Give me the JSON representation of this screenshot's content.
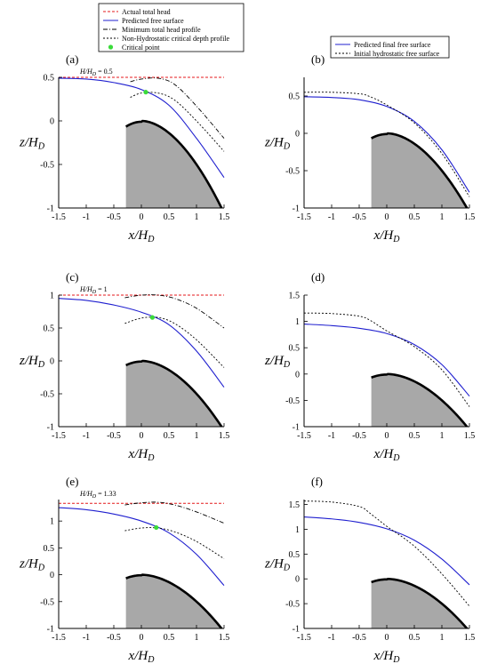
{
  "legend_left": {
    "items": [
      {
        "label": "Actual total head",
        "style": "red-dashed",
        "color": "#e41a1c"
      },
      {
        "label": "Predicted free surface",
        "style": "solid",
        "color": "#1f1fcf"
      },
      {
        "label": "Minimum total head profile",
        "style": "dash-dot",
        "color": "#000000"
      },
      {
        "label": "Non-Hydrostatic critical depth profile",
        "style": "dotted",
        "color": "#000000"
      },
      {
        "label": "Critical point",
        "style": "marker",
        "color": "#3adb3a"
      }
    ]
  },
  "legend_right": {
    "items": [
      {
        "label": "Predicted final free surface",
        "style": "solid",
        "color": "#1f1fcf"
      },
      {
        "label": "Initial hydrostatic free surface",
        "style": "dotted",
        "color": "#000000"
      }
    ]
  },
  "axis_labels": {
    "x_main": "x/H",
    "y_main": "z/H",
    "sub": "D"
  },
  "chart_data": [
    {
      "id": "a",
      "panel_label": "(a)",
      "type": "line",
      "head_label": "H/H",
      "head_sub": "D",
      "head_value": " = 0.5",
      "xlim": [
        -1.5,
        1.5
      ],
      "ylim": [
        -1,
        0.5
      ],
      "xticks": [
        -1.5,
        -1,
        -0.5,
        0,
        0.5,
        1,
        1.5
      ],
      "yticks": [
        -1,
        -0.5,
        0,
        0.5
      ],
      "total_head": 0.5,
      "series": [
        {
          "name": "Predicted free surface",
          "x": [
            -1.5,
            -1,
            -0.5,
            0,
            0.5,
            1,
            1.5
          ],
          "y": [
            0.49,
            0.48,
            0.44,
            0.36,
            0.18,
            -0.2,
            -0.65
          ]
        },
        {
          "name": "Minimum total head profile",
          "x": [
            -0.2,
            0,
            0.3,
            0.6,
            1,
            1.5
          ],
          "y": [
            0.45,
            0.48,
            0.49,
            0.42,
            0.17,
            -0.2
          ]
        },
        {
          "name": "Non-Hydrostatic critical depth profile",
          "x": [
            -0.2,
            0,
            0.3,
            0.6,
            1,
            1.5
          ],
          "y": [
            0.27,
            0.32,
            0.32,
            0.24,
            0,
            -0.35
          ]
        },
        {
          "name": "Critical point",
          "x": [
            0.08
          ],
          "y": [
            0.33
          ]
        }
      ]
    },
    {
      "id": "b",
      "panel_label": "(b)",
      "type": "line",
      "xlim": [
        -1.5,
        1.5
      ],
      "ylim": [
        -1,
        0.75
      ],
      "xticks": [
        -1.5,
        -1,
        -0.5,
        0,
        0.5,
        1,
        1.5
      ],
      "yticks": [
        -1,
        -0.5,
        0,
        0.5
      ],
      "series": [
        {
          "name": "Predicted final free surface",
          "x": [
            -1.5,
            -1,
            -0.5,
            0,
            0.5,
            1,
            1.5
          ],
          "y": [
            0.49,
            0.48,
            0.45,
            0.36,
            0.16,
            -0.22,
            -0.79
          ]
        },
        {
          "name": "Initial hydrostatic free surface",
          "x": [
            -1.5,
            -1,
            -0.5,
            -0.3,
            0,
            0.5,
            1,
            1.5
          ],
          "y": [
            0.55,
            0.55,
            0.53,
            0.49,
            0.38,
            0.14,
            -0.27,
            -0.85
          ]
        }
      ]
    },
    {
      "id": "c",
      "panel_label": "(c)",
      "type": "line",
      "head_label": "H/H",
      "head_sub": "D",
      "head_value": " = 1",
      "xlim": [
        -1.5,
        1.5
      ],
      "ylim": [
        -1,
        1
      ],
      "xticks": [
        -1.5,
        -1,
        -0.5,
        0,
        0.5,
        1,
        1.5
      ],
      "yticks": [
        -1,
        -0.5,
        0,
        0.5,
        1
      ],
      "total_head": 1,
      "series": [
        {
          "name": "Predicted free surface",
          "x": [
            -1.5,
            -1,
            -0.5,
            0,
            0.5,
            1,
            1.5
          ],
          "y": [
            0.95,
            0.92,
            0.85,
            0.74,
            0.55,
            0.15,
            -0.4
          ]
        },
        {
          "name": "Minimum total head profile",
          "x": [
            -0.3,
            0,
            0.3,
            0.6,
            1,
            1.5
          ],
          "y": [
            0.96,
            1,
            1,
            0.95,
            0.8,
            0.5
          ]
        },
        {
          "name": "Non-Hydrostatic critical depth profile",
          "x": [
            -0.3,
            0,
            0.3,
            0.6,
            1,
            1.5
          ],
          "y": [
            0.57,
            0.65,
            0.66,
            0.57,
            0.32,
            -0.1
          ]
        },
        {
          "name": "Critical point",
          "x": [
            0.2
          ],
          "y": [
            0.66
          ]
        }
      ]
    },
    {
      "id": "d",
      "panel_label": "(d)",
      "type": "line",
      "xlim": [
        -1.5,
        1.5
      ],
      "ylim": [
        -1,
        1.5
      ],
      "xticks": [
        -1.5,
        -1,
        -0.5,
        0,
        0.5,
        1,
        1.5
      ],
      "yticks": [
        -1,
        -0.5,
        0,
        0.5,
        1,
        1.5
      ],
      "series": [
        {
          "name": "Predicted final free surface",
          "x": [
            -1.5,
            -1,
            -0.5,
            0,
            0.5,
            1,
            1.5
          ],
          "y": [
            0.95,
            0.92,
            0.87,
            0.77,
            0.56,
            0.18,
            -0.42
          ]
        },
        {
          "name": "Initial hydrostatic free surface",
          "x": [
            -1.5,
            -1,
            -0.5,
            -0.3,
            0,
            0.5,
            1,
            1.5
          ],
          "y": [
            1.16,
            1.15,
            1.1,
            1.02,
            0.82,
            0.52,
            0.08,
            -0.62
          ]
        }
      ]
    },
    {
      "id": "e",
      "panel_label": "(e)",
      "type": "line",
      "head_label": "H/H",
      "head_sub": "D",
      "head_value": " = 1.33",
      "xlim": [
        -1.5,
        1.5
      ],
      "ylim": [
        -1,
        1.4
      ],
      "xticks": [
        -1.5,
        -1,
        -0.5,
        0,
        0.5,
        1,
        1.5
      ],
      "yticks": [
        -1,
        -0.5,
        0,
        0.5,
        1
      ],
      "total_head": 1.33,
      "series": [
        {
          "name": "Predicted free surface",
          "x": [
            -1.5,
            -1,
            -0.5,
            0,
            0.5,
            1,
            1.5
          ],
          "y": [
            1.25,
            1.21,
            1.13,
            1,
            0.78,
            0.38,
            -0.2
          ]
        },
        {
          "name": "Minimum total head profile",
          "x": [
            -0.3,
            0,
            0.3,
            0.6,
            1,
            1.5
          ],
          "y": [
            1.3,
            1.34,
            1.35,
            1.3,
            1.17,
            0.96
          ]
        },
        {
          "name": "Non-Hydrostatic critical depth profile",
          "x": [
            -0.3,
            0,
            0.3,
            0.6,
            1,
            1.5
          ],
          "y": [
            0.82,
            0.87,
            0.87,
            0.8,
            0.62,
            0.3
          ]
        },
        {
          "name": "Critical point",
          "x": [
            0.27
          ],
          "y": [
            0.88
          ]
        }
      ]
    },
    {
      "id": "f",
      "panel_label": "(f)",
      "type": "line",
      "xlim": [
        -1.5,
        1.5
      ],
      "ylim": [
        -1,
        1.6
      ],
      "xticks": [
        -1.5,
        -1,
        -0.5,
        0,
        0.5,
        1,
        1.5
      ],
      "yticks": [
        -1,
        -0.5,
        0,
        0.5,
        1,
        1.5
      ],
      "series": [
        {
          "name": "Predicted final free surface",
          "x": [
            -1.5,
            -1,
            -0.5,
            0,
            0.5,
            1,
            1.5
          ],
          "y": [
            1.25,
            1.21,
            1.14,
            1.01,
            0.78,
            0.4,
            -0.12
          ]
        },
        {
          "name": "Initial hydrostatic free surface",
          "x": [
            -1.5,
            -1,
            -0.5,
            -0.3,
            0,
            0.5,
            1,
            1.5
          ],
          "y": [
            1.57,
            1.55,
            1.46,
            1.32,
            1.06,
            0.66,
            0.1,
            -0.55
          ]
        }
      ]
    }
  ]
}
